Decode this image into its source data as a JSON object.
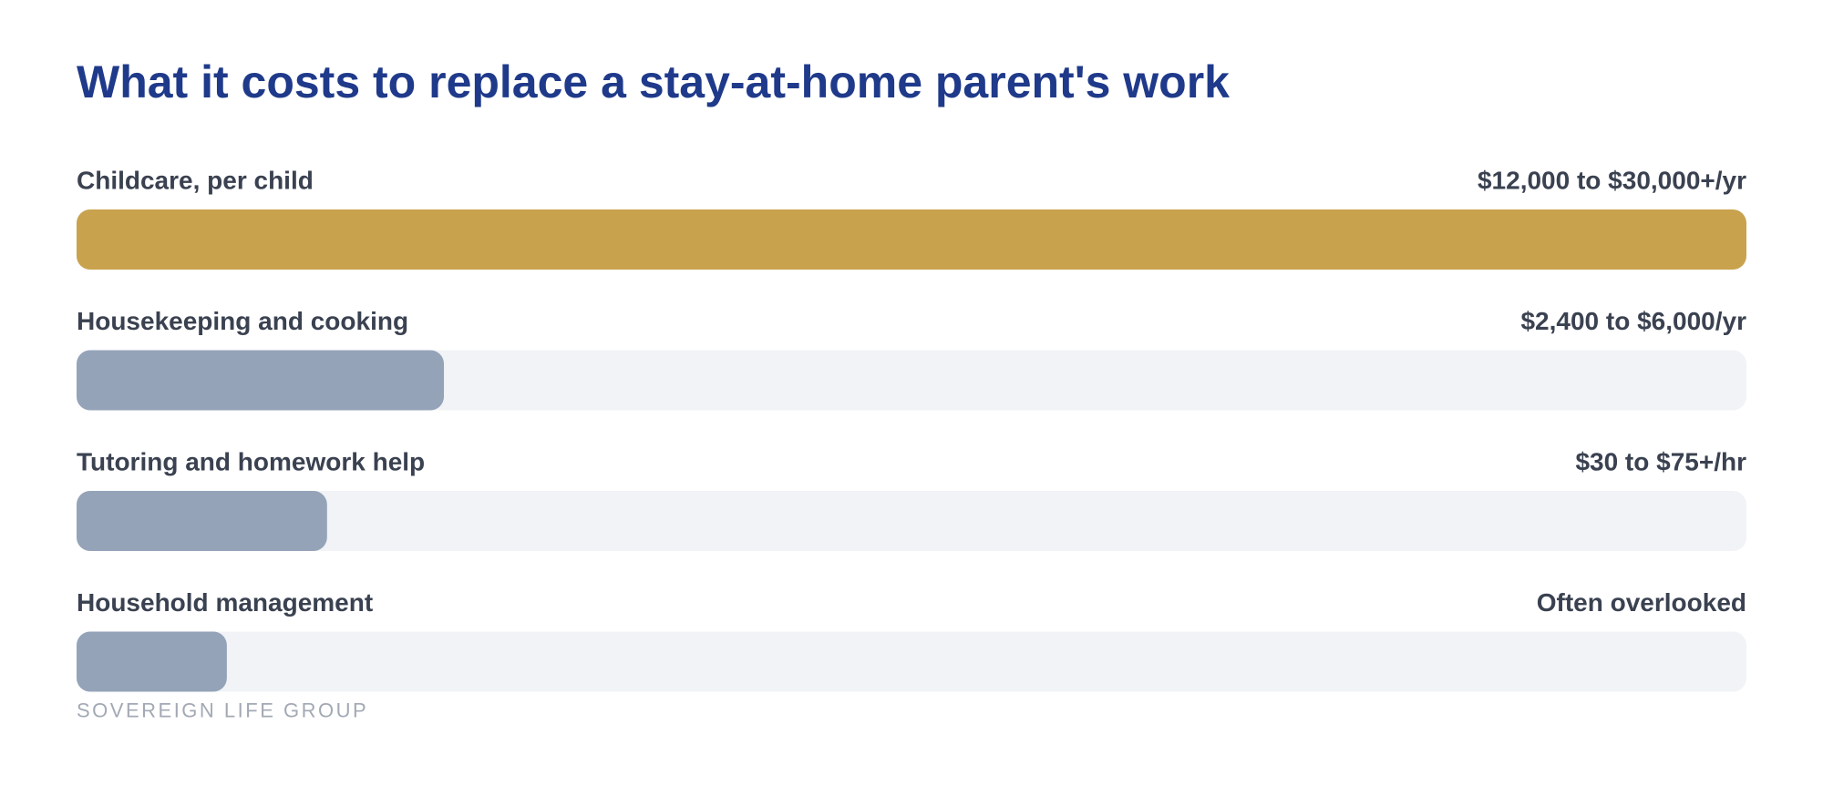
{
  "chart_data": {
    "type": "bar",
    "orientation": "horizontal",
    "title": "What it costs to replace a stay-at-home parent's work",
    "categories": [
      "Childcare, per child",
      "Housekeeping and cooking",
      "Tutoring and homework help",
      "Household management"
    ],
    "range_labels": [
      "$12,000 to $30,000+/yr",
      "$2,400 to $6,000/yr",
      "$30 to $75+/hr",
      "Often overlooked"
    ],
    "values": [
      100,
      22,
      15,
      9
    ],
    "colors": [
      "#c9a24e",
      "#94a3b8",
      "#94a3b8",
      "#94a3b8"
    ],
    "track_color": "#f1f3f6",
    "xlim": [
      0,
      100
    ],
    "footer": "SOVEREIGN LIFE GROUP"
  }
}
